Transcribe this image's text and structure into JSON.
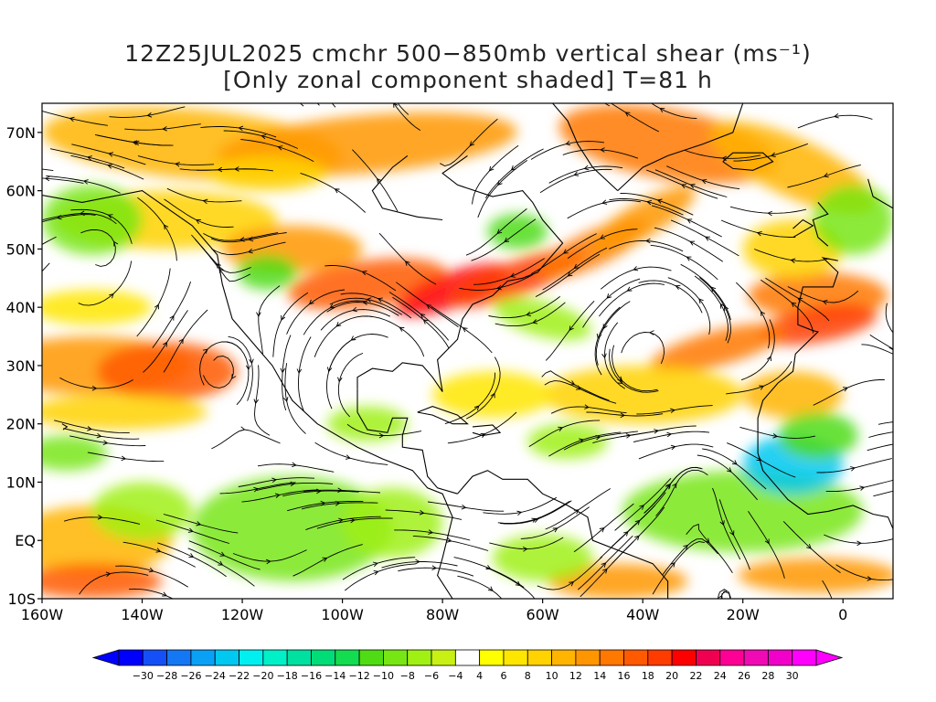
{
  "title": {
    "line1": "12Z25JUL2025 cmchr 500−850mb vertical shear (ms⁻¹)",
    "line2": "[Only zonal component shaded] T=81 h"
  },
  "map": {
    "lat_labels": [
      "70N",
      "60N",
      "50N",
      "40N",
      "30N",
      "20N",
      "10N",
      "EQ",
      "10S"
    ],
    "lon_labels": [
      "160W",
      "140W",
      "120W",
      "100W",
      "80W",
      "60W",
      "40W",
      "20W",
      "0"
    ],
    "extent": {
      "lon_min": -160,
      "lon_max": 10,
      "lat_min": -10,
      "lat_max": 75
    }
  },
  "colorbar": {
    "labels": [
      "-30",
      "-28",
      "-26",
      "-24",
      "-22",
      "-20",
      "-18",
      "-16",
      "-14",
      "-12",
      "-10",
      "-8",
      "-6",
      "-4",
      "4",
      "6",
      "8",
      "10",
      "12",
      "14",
      "16",
      "18",
      "20",
      "22",
      "24",
      "26",
      "28",
      "30"
    ],
    "colors": [
      "#0000ff",
      "#1450f5",
      "#1478f5",
      "#0aa0f5",
      "#00c8f0",
      "#00f0f0",
      "#00f0c8",
      "#00e0a0",
      "#00dc78",
      "#14dc50",
      "#50dc14",
      "#78e614",
      "#a0f014",
      "#c8f014",
      "#ffffff",
      "#ffff00",
      "#ffe600",
      "#ffd200",
      "#ffb400",
      "#ff9600",
      "#ff7800",
      "#ff5a00",
      "#ff3c00",
      "#ff0000",
      "#f00050",
      "#ff0096",
      "#f00ab4",
      "#f000c8",
      "#ff00ff"
    ],
    "under_color": "#0000ff",
    "over_color": "#ff00ff"
  }
}
